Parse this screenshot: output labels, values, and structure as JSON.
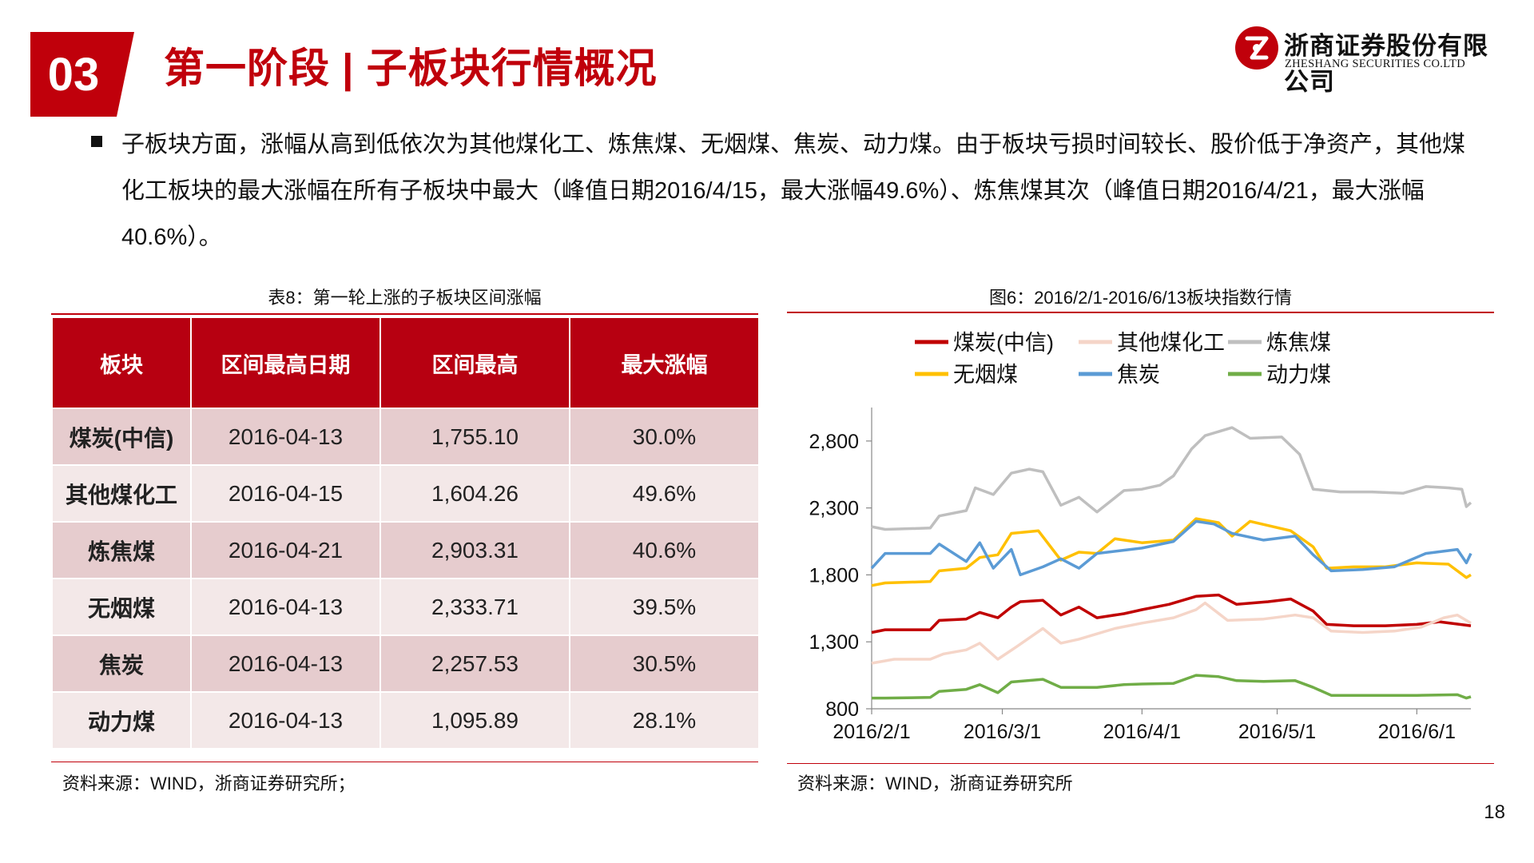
{
  "section_number": "03",
  "page_title": "第一阶段 | 子板块行情概况",
  "logo": {
    "cn": "浙商证券股份有限公司",
    "en": "ZHESHANG SECURITIES CO.LTD"
  },
  "intro": "子板块方面，涨幅从高到低依次为其他煤化工、炼焦煤、无烟煤、焦炭、动力煤。由于板块亏损时间较长、股价低于净资产，其他煤化工板块的最大涨幅在所有子板块中最大（峰值日期2016/4/15，最大涨幅49.6%）、炼焦煤其次（峰值日期2016/4/21，最大涨幅40.6%）。",
  "table": {
    "caption": "表8：第一轮上涨的子板块区间涨幅",
    "headers": [
      "板块",
      "区间最高日期",
      "区间最高",
      "最大涨幅"
    ],
    "rows": [
      [
        "煤炭(中信)",
        "2016-04-13",
        "1,755.10",
        "30.0%"
      ],
      [
        "其他煤化工",
        "2016-04-15",
        "1,604.26",
        "49.6%"
      ],
      [
        "炼焦煤",
        "2016-04-21",
        "2,903.31",
        "40.6%"
      ],
      [
        "无烟煤",
        "2016-04-13",
        "2,333.71",
        "39.5%"
      ],
      [
        "焦炭",
        "2016-04-13",
        "2,257.53",
        "30.5%"
      ],
      [
        "动力煤",
        "2016-04-13",
        "1,095.89",
        "28.1%"
      ]
    ],
    "source": "资料来源：WIND，浙商证券研究所；"
  },
  "chart_caption": "图6：2016/2/1-2016/6/13板块指数行情",
  "chart_source": "资料来源：WIND，浙商证券研究所",
  "page_number": "18",
  "colors": {
    "brand": "#c0000b",
    "header": "#b70011"
  },
  "chart_data": {
    "type": "line",
    "title": "图6：2016/2/1-2016/6/13板块指数行情",
    "xlabel": "",
    "ylabel": "",
    "ylim": [
      800,
      3050
    ],
    "yticks": [
      800,
      1300,
      1800,
      2300,
      2800
    ],
    "ytick_labels": [
      "800",
      "1,300",
      "1,800",
      "2,300",
      "2,800"
    ],
    "xlim": [
      "2016-02-01",
      "2016-06-13"
    ],
    "xticks": [
      {
        "date": "2016-02-01",
        "label": "2016/2/1"
      },
      {
        "date": "2016-03-01",
        "label": "2016/3/1"
      },
      {
        "date": "2016-04-01",
        "label": "2016/4/1"
      },
      {
        "date": "2016-05-01",
        "label": "2016/5/1"
      },
      {
        "date": "2016-06-01",
        "label": "2016/6/1"
      }
    ],
    "series": [
      {
        "name": "煤炭(中信)",
        "color": "#c00000",
        "points": [
          [
            "2016-02-01",
            1370
          ],
          [
            "2016-02-04",
            1390
          ],
          [
            "2016-02-14",
            1390
          ],
          [
            "2016-02-16",
            1460
          ],
          [
            "2016-02-22",
            1470
          ],
          [
            "2016-02-25",
            1520
          ],
          [
            "2016-02-29",
            1480
          ],
          [
            "2016-03-03",
            1560
          ],
          [
            "2016-03-05",
            1600
          ],
          [
            "2016-03-10",
            1610
          ],
          [
            "2016-03-14",
            1500
          ],
          [
            "2016-03-18",
            1560
          ],
          [
            "2016-03-22",
            1480
          ],
          [
            "2016-03-28",
            1510
          ],
          [
            "2016-04-01",
            1540
          ],
          [
            "2016-04-07",
            1580
          ],
          [
            "2016-04-13",
            1640
          ],
          [
            "2016-04-18",
            1650
          ],
          [
            "2016-04-22",
            1580
          ],
          [
            "2016-04-29",
            1600
          ],
          [
            "2016-05-04",
            1620
          ],
          [
            "2016-05-09",
            1530
          ],
          [
            "2016-05-12",
            1430
          ],
          [
            "2016-05-18",
            1420
          ],
          [
            "2016-05-25",
            1420
          ],
          [
            "2016-06-01",
            1430
          ],
          [
            "2016-06-06",
            1450
          ],
          [
            "2016-06-13",
            1420
          ]
        ]
      },
      {
        "name": "其他煤化工",
        "color": "#f5d5c8",
        "points": [
          [
            "2016-02-01",
            1140
          ],
          [
            "2016-02-06",
            1170
          ],
          [
            "2016-02-14",
            1170
          ],
          [
            "2016-02-17",
            1210
          ],
          [
            "2016-02-22",
            1240
          ],
          [
            "2016-02-25",
            1290
          ],
          [
            "2016-02-29",
            1170
          ],
          [
            "2016-03-04",
            1260
          ],
          [
            "2016-03-10",
            1400
          ],
          [
            "2016-03-14",
            1290
          ],
          [
            "2016-03-18",
            1320
          ],
          [
            "2016-03-22",
            1360
          ],
          [
            "2016-03-26",
            1400
          ],
          [
            "2016-04-01",
            1440
          ],
          [
            "2016-04-08",
            1480
          ],
          [
            "2016-04-13",
            1540
          ],
          [
            "2016-04-15",
            1590
          ],
          [
            "2016-04-20",
            1460
          ],
          [
            "2016-04-28",
            1470
          ],
          [
            "2016-05-05",
            1500
          ],
          [
            "2016-05-09",
            1480
          ],
          [
            "2016-05-13",
            1380
          ],
          [
            "2016-05-20",
            1370
          ],
          [
            "2016-05-27",
            1380
          ],
          [
            "2016-06-02",
            1410
          ],
          [
            "2016-06-07",
            1480
          ],
          [
            "2016-06-10",
            1500
          ],
          [
            "2016-06-13",
            1440
          ]
        ]
      },
      {
        "name": "炼焦煤",
        "color": "#bfbfbf",
        "points": [
          [
            "2016-02-01",
            2160
          ],
          [
            "2016-02-04",
            2140
          ],
          [
            "2016-02-14",
            2150
          ],
          [
            "2016-02-16",
            2240
          ],
          [
            "2016-02-22",
            2280
          ],
          [
            "2016-02-24",
            2450
          ],
          [
            "2016-02-28",
            2400
          ],
          [
            "2016-03-03",
            2560
          ],
          [
            "2016-03-07",
            2590
          ],
          [
            "2016-03-10",
            2570
          ],
          [
            "2016-03-14",
            2320
          ],
          [
            "2016-03-18",
            2380
          ],
          [
            "2016-03-22",
            2270
          ],
          [
            "2016-03-28",
            2430
          ],
          [
            "2016-04-01",
            2440
          ],
          [
            "2016-04-05",
            2470
          ],
          [
            "2016-04-08",
            2540
          ],
          [
            "2016-04-12",
            2740
          ],
          [
            "2016-04-15",
            2840
          ],
          [
            "2016-04-21",
            2900
          ],
          [
            "2016-04-25",
            2820
          ],
          [
            "2016-05-02",
            2830
          ],
          [
            "2016-05-06",
            2700
          ],
          [
            "2016-05-09",
            2440
          ],
          [
            "2016-05-15",
            2420
          ],
          [
            "2016-05-22",
            2420
          ],
          [
            "2016-05-29",
            2410
          ],
          [
            "2016-06-03",
            2460
          ],
          [
            "2016-06-08",
            2450
          ],
          [
            "2016-06-11",
            2440
          ],
          [
            "2016-06-12",
            2310
          ],
          [
            "2016-06-13",
            2340
          ]
        ]
      },
      {
        "name": "无烟煤",
        "color": "#ffc000",
        "points": [
          [
            "2016-02-01",
            1720
          ],
          [
            "2016-02-04",
            1740
          ],
          [
            "2016-02-14",
            1750
          ],
          [
            "2016-02-16",
            1830
          ],
          [
            "2016-02-22",
            1850
          ],
          [
            "2016-02-25",
            1930
          ],
          [
            "2016-02-29",
            1950
          ],
          [
            "2016-03-03",
            2110
          ],
          [
            "2016-03-09",
            2130
          ],
          [
            "2016-03-14",
            1910
          ],
          [
            "2016-03-18",
            1970
          ],
          [
            "2016-03-22",
            1960
          ],
          [
            "2016-03-26",
            2070
          ],
          [
            "2016-04-01",
            2040
          ],
          [
            "2016-04-08",
            2060
          ],
          [
            "2016-04-13",
            2220
          ],
          [
            "2016-04-18",
            2190
          ],
          [
            "2016-04-21",
            2090
          ],
          [
            "2016-04-25",
            2200
          ],
          [
            "2016-05-04",
            2130
          ],
          [
            "2016-05-09",
            2010
          ],
          [
            "2016-05-12",
            1850
          ],
          [
            "2016-05-18",
            1860
          ],
          [
            "2016-05-25",
            1860
          ],
          [
            "2016-06-01",
            1890
          ],
          [
            "2016-06-08",
            1880
          ],
          [
            "2016-06-12",
            1780
          ],
          [
            "2016-06-13",
            1800
          ]
        ]
      },
      {
        "name": "焦炭",
        "color": "#5b9bd5",
        "points": [
          [
            "2016-02-01",
            1850
          ],
          [
            "2016-02-04",
            1960
          ],
          [
            "2016-02-14",
            1960
          ],
          [
            "2016-02-16",
            2030
          ],
          [
            "2016-02-22",
            1900
          ],
          [
            "2016-02-25",
            2040
          ],
          [
            "2016-02-28",
            1850
          ],
          [
            "2016-03-03",
            1990
          ],
          [
            "2016-03-05",
            1800
          ],
          [
            "2016-03-10",
            1860
          ],
          [
            "2016-03-14",
            1920
          ],
          [
            "2016-03-18",
            1850
          ],
          [
            "2016-03-22",
            1960
          ],
          [
            "2016-04-01",
            2000
          ],
          [
            "2016-04-08",
            2050
          ],
          [
            "2016-04-13",
            2200
          ],
          [
            "2016-04-17",
            2180
          ],
          [
            "2016-04-21",
            2110
          ],
          [
            "2016-04-28",
            2060
          ],
          [
            "2016-05-05",
            2090
          ],
          [
            "2016-05-09",
            1950
          ],
          [
            "2016-05-13",
            1830
          ],
          [
            "2016-05-20",
            1840
          ],
          [
            "2016-05-27",
            1860
          ],
          [
            "2016-06-03",
            1960
          ],
          [
            "2016-06-10",
            1990
          ],
          [
            "2016-06-12",
            1890
          ],
          [
            "2016-06-13",
            1960
          ]
        ]
      },
      {
        "name": "动力煤",
        "color": "#70ad47",
        "points": [
          [
            "2016-02-01",
            880
          ],
          [
            "2016-02-04",
            880
          ],
          [
            "2016-02-14",
            885
          ],
          [
            "2016-02-16",
            930
          ],
          [
            "2016-02-22",
            945
          ],
          [
            "2016-02-25",
            980
          ],
          [
            "2016-02-29",
            920
          ],
          [
            "2016-03-03",
            1000
          ],
          [
            "2016-03-10",
            1020
          ],
          [
            "2016-03-14",
            960
          ],
          [
            "2016-03-22",
            960
          ],
          [
            "2016-03-28",
            980
          ],
          [
            "2016-04-01",
            985
          ],
          [
            "2016-04-08",
            990
          ],
          [
            "2016-04-13",
            1050
          ],
          [
            "2016-04-18",
            1040
          ],
          [
            "2016-04-22",
            1010
          ],
          [
            "2016-04-28",
            1005
          ],
          [
            "2016-05-05",
            1010
          ],
          [
            "2016-05-09",
            960
          ],
          [
            "2016-05-13",
            900
          ],
          [
            "2016-05-20",
            900
          ],
          [
            "2016-06-01",
            900
          ],
          [
            "2016-06-10",
            905
          ],
          [
            "2016-06-12",
            880
          ],
          [
            "2016-06-13",
            890
          ]
        ]
      }
    ]
  }
}
